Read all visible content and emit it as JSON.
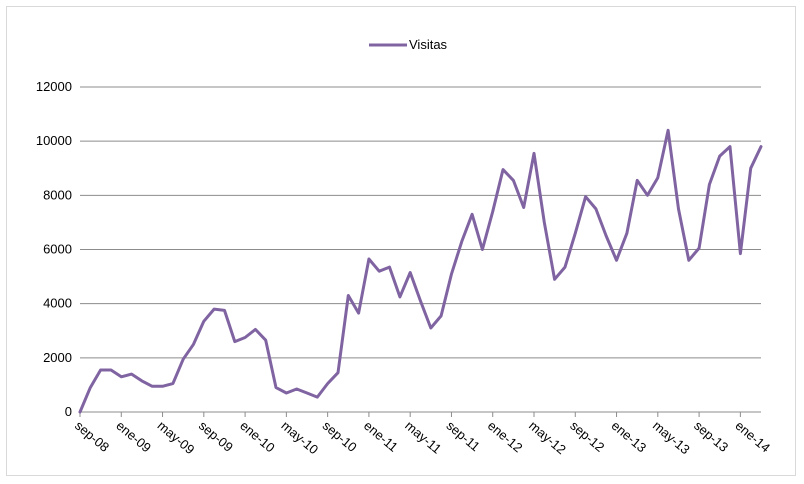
{
  "chart_data": {
    "type": "line",
    "title": "",
    "xlabel": "",
    "ylabel": "",
    "ylim": [
      0,
      12000
    ],
    "yticks": [
      0,
      2000,
      4000,
      6000,
      8000,
      10000,
      12000
    ],
    "grid": "horizontal",
    "legend_position": "top",
    "x_tick_labels": [
      "sep-08",
      "ene-09",
      "may-09",
      "sep-09",
      "ene-10",
      "may-10",
      "sep-10",
      "ene-11",
      "may-11",
      "sep-11",
      "ene-12",
      "may-12",
      "sep-12",
      "ene-13",
      "may-13",
      "sep-13",
      "ene-14"
    ],
    "series": [
      {
        "name": "Visitas",
        "color": "#8064a2",
        "values": [
          0,
          900,
          1550,
          1550,
          1300,
          1400,
          1150,
          950,
          950,
          1050,
          1950,
          2500,
          3350,
          3800,
          3750,
          2600,
          2750,
          3050,
          2650,
          900,
          700,
          850,
          700,
          550,
          1050,
          1450,
          4300,
          3650,
          5650,
          5200,
          5350,
          4250,
          5150,
          4100,
          3100,
          3550,
          5100,
          6300,
          7300,
          6000,
          7400,
          8950,
          8550,
          7550,
          9550,
          7000,
          4900,
          5350,
          6600,
          7950,
          7500,
          6500,
          5600,
          6600,
          8550,
          8000,
          8650,
          10400,
          7500,
          5600,
          6050,
          8400,
          9450,
          9800,
          5850,
          9000,
          9800
        ]
      }
    ]
  }
}
